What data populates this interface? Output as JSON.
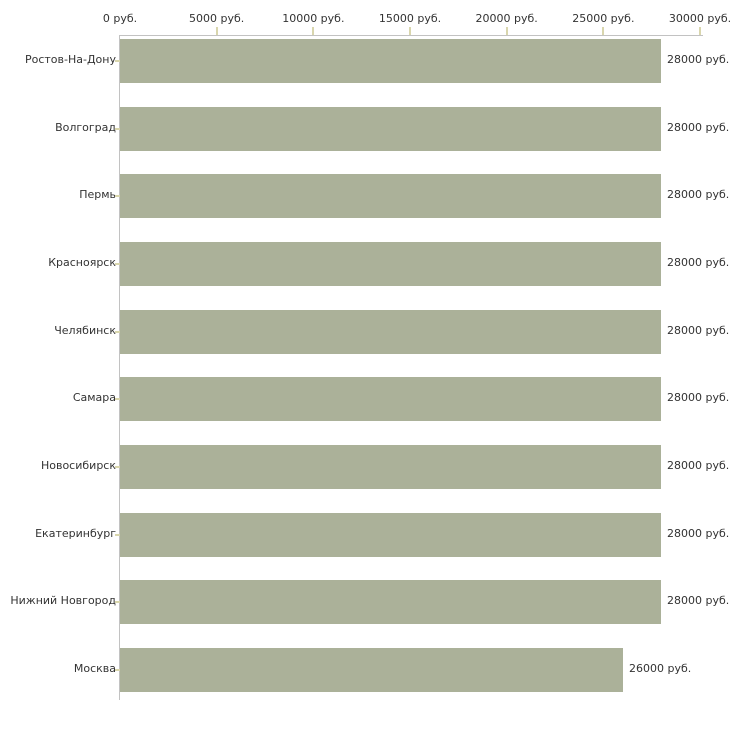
{
  "chart_data": {
    "type": "bar",
    "orientation": "horizontal",
    "title": "",
    "categories": [
      "Ростов-На-Дону",
      "Волгоград",
      "Пермь",
      "Красноярск",
      "Челябинск",
      "Самара",
      "Новосибирск",
      "Екатеринбург",
      "Нижний Новгород",
      "Москва"
    ],
    "values": [
      28000,
      28000,
      28000,
      28000,
      28000,
      28000,
      28000,
      28000,
      28000,
      26000
    ],
    "value_labels": [
      "28000 руб.",
      "28000 руб.",
      "28000 руб.",
      "28000 руб.",
      "28000 руб.",
      "28000 руб.",
      "28000 руб.",
      "28000 руб.",
      "28000 руб.",
      "26000 руб."
    ],
    "x_tick_values": [
      0,
      5000,
      10000,
      15000,
      20000,
      25000,
      30000
    ],
    "x_tick_labels": [
      "0 руб.",
      "5000 руб.",
      "10000 руб.",
      "15000 руб.",
      "20000 руб.",
      "25000 руб.",
      "30000 руб."
    ],
    "xlim": [
      0,
      30000
    ],
    "unit": "руб.",
    "grid": false,
    "axis_position": "top",
    "colors": {
      "bar": "#abb199",
      "axis": "#c2c2c2",
      "tick": "#d9d6ad",
      "text": "#333333",
      "background": "#ffffff"
    }
  }
}
